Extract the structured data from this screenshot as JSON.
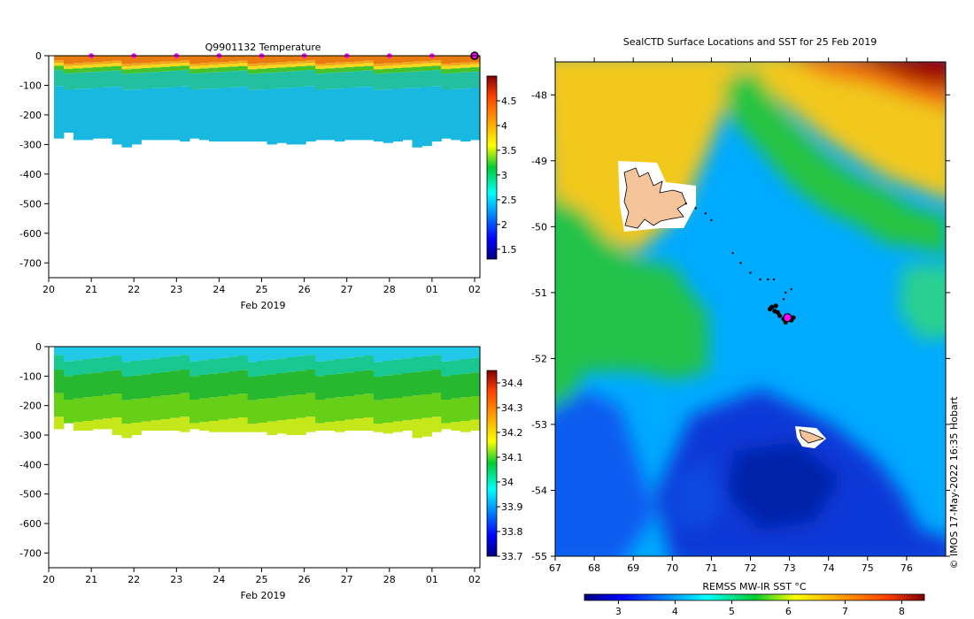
{
  "chart_data": [
    {
      "type": "heatmap",
      "title": "Q9901132  Temperature",
      "xlabel": "Feb 2019",
      "ylabel": "",
      "xticks": [
        "20",
        "21",
        "22",
        "23",
        "24",
        "25",
        "26",
        "27",
        "28",
        "01",
        "02"
      ],
      "yticks": [
        "0",
        "-100",
        "-200",
        "-300",
        "-400",
        "-500",
        "-600",
        "-700"
      ],
      "ylim": [
        -750,
        0
      ],
      "colorbar_ticks": [
        "1.5",
        "2",
        "2.5",
        "3",
        "3.5",
        "4",
        "4.5"
      ],
      "colorbar_range": [
        1.3,
        5.0
      ],
      "profile_max_depths": [
        280,
        260,
        285,
        285,
        280,
        280,
        300,
        310,
        300,
        285,
        285,
        285,
        285,
        290,
        280,
        285,
        290,
        290,
        290,
        290,
        290,
        290,
        300,
        295,
        300,
        300,
        290,
        285,
        285,
        290,
        285,
        285,
        285,
        290,
        295,
        290,
        285,
        310,
        305,
        290,
        280,
        285,
        290,
        285
      ],
      "markers_at_days": [
        21,
        22,
        23,
        24,
        25,
        26,
        27,
        28,
        29,
        30
      ],
      "last_position_marker_day": 30
    },
    {
      "type": "heatmap",
      "title": "",
      "xlabel": "Feb 2019",
      "xticks": [
        "20",
        "21",
        "22",
        "23",
        "24",
        "25",
        "26",
        "27",
        "28",
        "01",
        "02"
      ],
      "yticks": [
        "0",
        "-100",
        "-200",
        "-300",
        "-400",
        "-500",
        "-600",
        "-700"
      ],
      "ylim": [
        -750,
        0
      ],
      "colorbar_ticks": [
        "33.7",
        "33.8",
        "33.9",
        "34",
        "34.1",
        "34.2",
        "34.3",
        "34.4"
      ],
      "colorbar_range": [
        33.7,
        34.45
      ]
    },
    {
      "type": "heatmap",
      "title": "SealCTD Surface Locations and SST for 25 Feb 2019",
      "xticks": [
        "67",
        "68",
        "69",
        "70",
        "71",
        "72",
        "73",
        "74",
        "75",
        "76"
      ],
      "yticks": [
        "-48",
        "-49",
        "-50",
        "-51",
        "-52",
        "-53",
        "-54",
        "-55"
      ],
      "xlim": [
        67,
        77
      ],
      "ylim": [
        -55,
        -47.5
      ],
      "colorbar_label": "REMSS MW-IR SST °C",
      "colorbar_ticks": [
        "3",
        "4",
        "5",
        "6",
        "7",
        "8"
      ],
      "colorbar_range": [
        2.4,
        8.4
      ],
      "track_points": [
        [
          70.35,
          -49.65
        ],
        [
          70.6,
          -49.72
        ],
        [
          70.85,
          -49.8
        ],
        [
          71.0,
          -49.9
        ],
        [
          71.55,
          -50.4
        ],
        [
          71.75,
          -50.55
        ],
        [
          72.0,
          -50.7
        ],
        [
          72.25,
          -50.8
        ],
        [
          72.45,
          -50.8
        ],
        [
          72.6,
          -50.8
        ],
        [
          72.9,
          -51.0
        ],
        [
          73.05,
          -50.95
        ],
        [
          72.85,
          -51.1
        ]
      ],
      "cluster_points": [
        [
          72.55,
          -51.22
        ],
        [
          72.62,
          -51.28
        ],
        [
          72.7,
          -51.3
        ],
        [
          72.75,
          -51.35
        ],
        [
          72.85,
          -51.4
        ],
        [
          72.95,
          -51.4
        ],
        [
          73.05,
          -51.42
        ],
        [
          73.1,
          -51.38
        ],
        [
          72.9,
          -51.45
        ],
        [
          72.65,
          -51.2
        ],
        [
          72.5,
          -51.25
        ]
      ],
      "current_position": [
        72.95,
        -51.38
      ]
    }
  ],
  "credit": "© IMOS 17-May-2022 16:35 Hobart"
}
